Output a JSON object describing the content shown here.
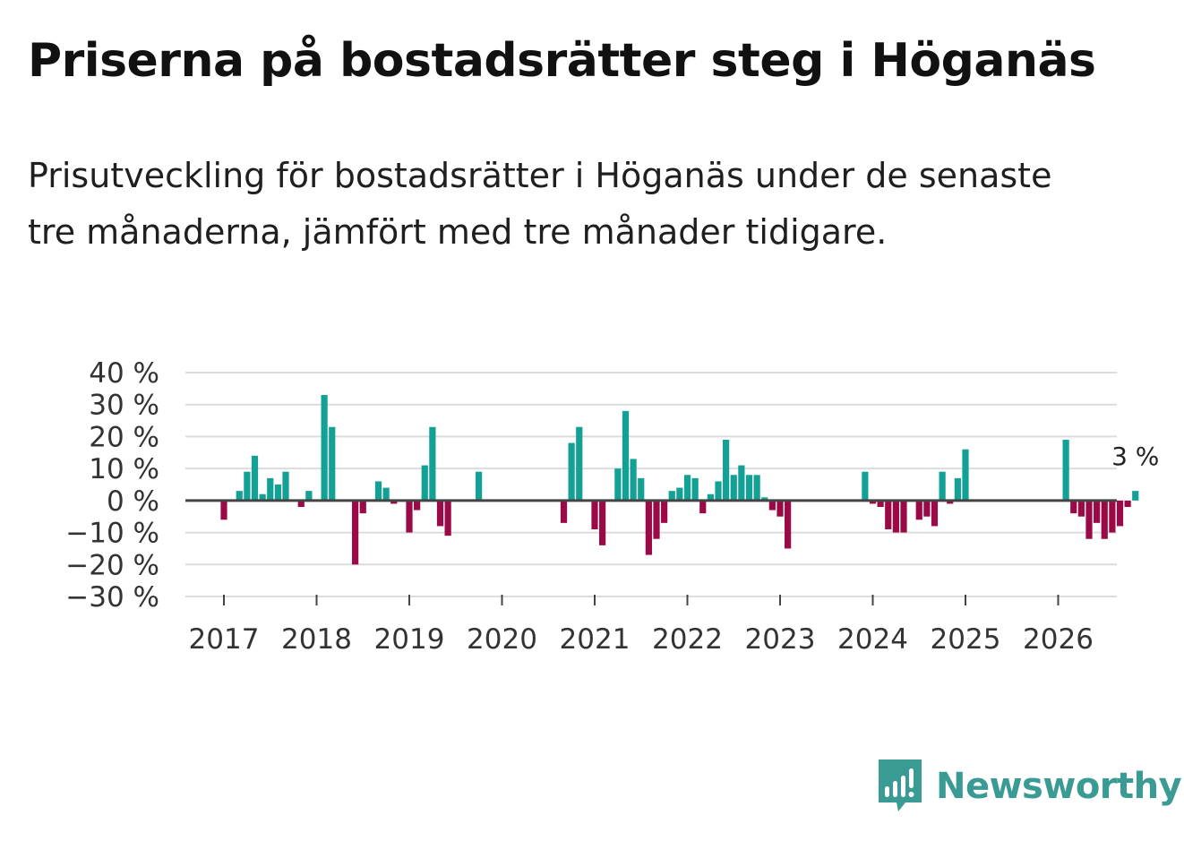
{
  "header": {
    "title": "Priserna på bostadsrätter steg i Höganäs",
    "subtitle": "Prisutveckling för bostadsrätter i Höganäs under de senaste tre månaderna, jämfört med tre månader tidigare."
  },
  "colors": {
    "positive": "#13a095",
    "negative": "#9b0a46",
    "grid": "#dcdcdc",
    "zero_line": "#444444",
    "brand": "#3a9a94"
  },
  "brand": {
    "name": "Newsworthy",
    "icon": "bar-chart-speech-bubble-icon"
  },
  "chart_data": {
    "type": "bar",
    "title": "Priserna på bostadsrätter steg i Höganäs",
    "xlabel": "",
    "ylabel": "",
    "ylim": [
      -30,
      40
    ],
    "yticks": [
      40,
      30,
      20,
      10,
      0,
      -10,
      -20,
      -30
    ],
    "ytick_labels": [
      "40 %",
      "30 %",
      "20 %",
      "10 %",
      "0 %",
      "−10 %",
      "−20 %",
      "−30 %"
    ],
    "x_start": "2016-07",
    "xtick_years": [
      2017,
      2018,
      2019,
      2020,
      2021,
      2022,
      2023,
      2024,
      2025,
      2026
    ],
    "grid": true,
    "unit": "%",
    "annotation": {
      "text": "3 %",
      "value": 3
    },
    "values": [
      null,
      null,
      null,
      null,
      null,
      null,
      -6,
      null,
      3,
      9,
      14,
      2,
      7,
      5,
      9,
      null,
      -2,
      3,
      null,
      33,
      23,
      null,
      null,
      -20,
      -4,
      null,
      6,
      4,
      -1,
      null,
      -10,
      -3,
      11,
      23,
      -8,
      -11,
      null,
      null,
      null,
      9,
      null,
      null,
      null,
      null,
      null,
      null,
      null,
      null,
      null,
      null,
      -7,
      18,
      23,
      null,
      -9,
      -14,
      null,
      10,
      28,
      13,
      7,
      -17,
      -12,
      -7,
      3,
      4,
      8,
      7,
      -4,
      2,
      6,
      19,
      8,
      11,
      8,
      8,
      1,
      -3,
      -5,
      -15,
      null,
      null,
      null,
      null,
      null,
      null,
      null,
      null,
      null,
      9,
      -1,
      -2,
      -9,
      -10,
      -10,
      null,
      -6,
      -5,
      -8,
      9,
      -1,
      7,
      16,
      null,
      null,
      null,
      null,
      null,
      null,
      null,
      null,
      null,
      null,
      null,
      null,
      19,
      -4,
      -5,
      -12,
      -7,
      -12,
      -10,
      -8,
      -2,
      3
    ]
  }
}
